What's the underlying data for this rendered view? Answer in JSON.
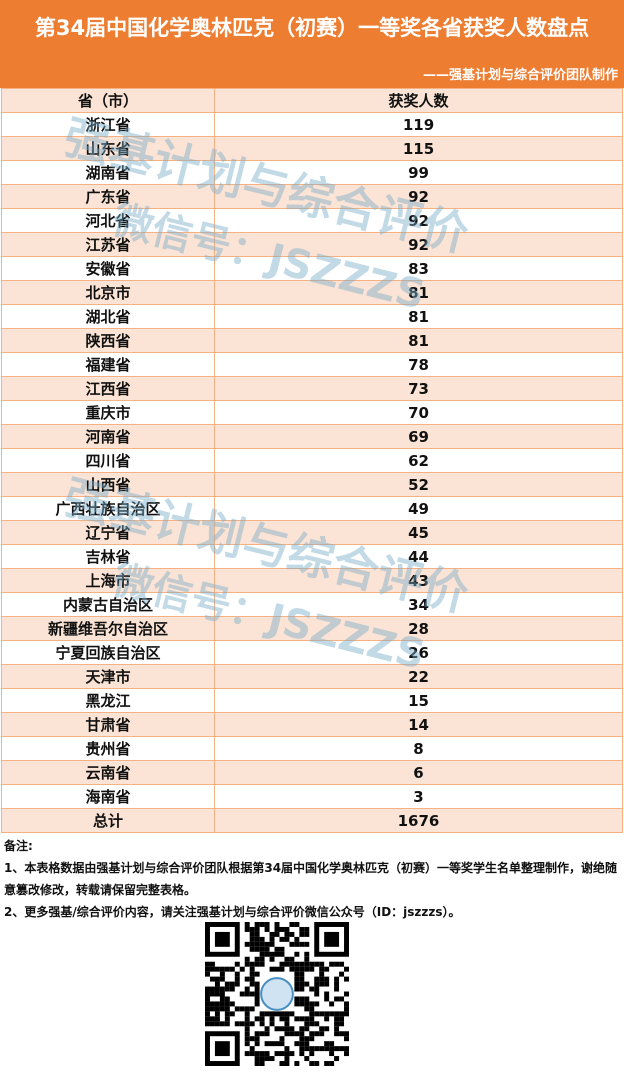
{
  "title": "第34届中国化学奥林匹克（初赛）一等奖各省获奖人数盘点",
  "subtitle": "——强基计划与综合评价团队制作",
  "table": {
    "headers": [
      "省（市）",
      "获奖人数"
    ],
    "rows": [
      [
        "浙江省",
        "119"
      ],
      [
        "山东省",
        "115"
      ],
      [
        "湖南省",
        "99"
      ],
      [
        "广东省",
        "92"
      ],
      [
        "河北省",
        "92"
      ],
      [
        "江苏省",
        "92"
      ],
      [
        "安徽省",
        "83"
      ],
      [
        "北京市",
        "81"
      ],
      [
        "湖北省",
        "81"
      ],
      [
        "陕西省",
        "81"
      ],
      [
        "福建省",
        "78"
      ],
      [
        "江西省",
        "73"
      ],
      [
        "重庆市",
        "70"
      ],
      [
        "河南省",
        "69"
      ],
      [
        "四川省",
        "62"
      ],
      [
        "山西省",
        "52"
      ],
      [
        "广西壮族自治区",
        "49"
      ],
      [
        "辽宁省",
        "45"
      ],
      [
        "吉林省",
        "44"
      ],
      [
        "上海市",
        "43"
      ],
      [
        "内蒙古自治区",
        "34"
      ],
      [
        "新疆维吾尔自治区",
        "28"
      ],
      [
        "宁夏回族自治区",
        "26"
      ],
      [
        "天津市",
        "22"
      ],
      [
        "黑龙江",
        "15"
      ],
      [
        "甘肃省",
        "14"
      ],
      [
        "贵州省",
        "8"
      ],
      [
        "云南省",
        "6"
      ],
      [
        "海南省",
        "3"
      ]
    ],
    "total": [
      "总计",
      "1676"
    ]
  },
  "notes": {
    "heading": "备注:",
    "line1": "1、本表格数据由强基计划与综合评价团队根据第34届中国化学奥林匹克（初赛）一等奖学生名单整理制作，谢绝随意篡改修改，转载请保留完整表格。",
    "line2": "2、更多强基/综合评价内容，请关注强基计划与综合评价微信公众号（ID：jszzzs）。"
  },
  "watermark": {
    "line1": "强基计划与综合评价",
    "line2": "微信号：JSZZZS"
  },
  "colors": {
    "header": "#ed7d31",
    "row_alt": "#fbe4d5",
    "border": "#f4b183"
  }
}
